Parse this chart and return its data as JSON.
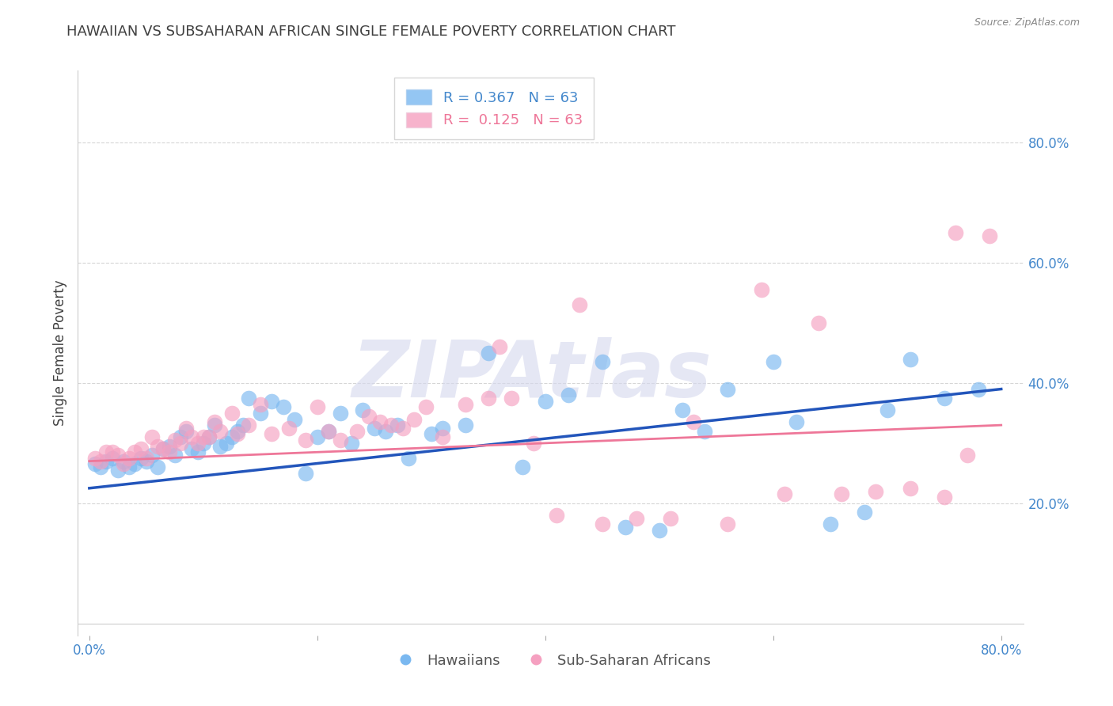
{
  "title": "HAWAIIAN VS SUBSAHARAN AFRICAN SINGLE FEMALE POVERTY CORRELATION CHART",
  "source": "Source: ZipAtlas.com",
  "ylabel": "Single Female Poverty",
  "xlabel": "",
  "xlim": [
    -0.01,
    0.82
  ],
  "ylim": [
    -0.02,
    0.92
  ],
  "xticks": [
    0.0,
    0.2,
    0.4,
    0.6,
    0.8
  ],
  "yticks": [
    0.2,
    0.4,
    0.6,
    0.8
  ],
  "xtick_labels": [
    "0.0%",
    "",
    "",
    "",
    "80.0%"
  ],
  "ytick_labels": [
    "20.0%",
    "40.0%",
    "60.0%",
    "80.0%"
  ],
  "hawaiian_color": "#7ab8f0",
  "african_color": "#f5a0c0",
  "trend_blue": "#2255bb",
  "trend_pink": "#ee7799",
  "watermark": "ZIPAtlas",
  "watermark_color": "#d5d8ee",
  "legend_r_blue": "R = 0.367",
  "legend_n_blue": "N = 63",
  "legend_r_pink": "R =  0.125",
  "legend_n_pink": "N = 63",
  "label_blue": "Hawaiians",
  "label_pink": "Sub-Saharan Africans",
  "background": "#ffffff",
  "grid_color": "#cccccc",
  "title_color": "#404040",
  "axis_color": "#4488cc",
  "axis_tick_color": "#aaaaaa",
  "hawaiian_x": [
    0.005,
    0.01,
    0.015,
    0.02,
    0.025,
    0.03,
    0.035,
    0.04,
    0.045,
    0.05,
    0.055,
    0.06,
    0.065,
    0.07,
    0.075,
    0.08,
    0.085,
    0.09,
    0.095,
    0.1,
    0.105,
    0.11,
    0.115,
    0.12,
    0.125,
    0.13,
    0.135,
    0.14,
    0.15,
    0.16,
    0.17,
    0.18,
    0.19,
    0.2,
    0.21,
    0.22,
    0.23,
    0.24,
    0.25,
    0.26,
    0.27,
    0.28,
    0.3,
    0.31,
    0.33,
    0.35,
    0.38,
    0.4,
    0.42,
    0.45,
    0.47,
    0.5,
    0.52,
    0.54,
    0.56,
    0.6,
    0.62,
    0.65,
    0.68,
    0.7,
    0.72,
    0.75,
    0.78
  ],
  "hawaiian_y": [
    0.265,
    0.26,
    0.27,
    0.275,
    0.255,
    0.27,
    0.26,
    0.265,
    0.275,
    0.27,
    0.28,
    0.26,
    0.29,
    0.295,
    0.28,
    0.31,
    0.32,
    0.29,
    0.285,
    0.3,
    0.31,
    0.33,
    0.295,
    0.3,
    0.31,
    0.32,
    0.33,
    0.375,
    0.35,
    0.37,
    0.36,
    0.34,
    0.25,
    0.31,
    0.32,
    0.35,
    0.3,
    0.355,
    0.325,
    0.32,
    0.33,
    0.275,
    0.315,
    0.325,
    0.33,
    0.45,
    0.26,
    0.37,
    0.38,
    0.435,
    0.16,
    0.155,
    0.355,
    0.32,
    0.39,
    0.435,
    0.335,
    0.165,
    0.185,
    0.355,
    0.44,
    0.375,
    0.39
  ],
  "african_x": [
    0.005,
    0.01,
    0.015,
    0.02,
    0.025,
    0.03,
    0.035,
    0.04,
    0.045,
    0.05,
    0.055,
    0.06,
    0.065,
    0.07,
    0.075,
    0.08,
    0.085,
    0.09,
    0.095,
    0.1,
    0.105,
    0.11,
    0.115,
    0.125,
    0.13,
    0.14,
    0.15,
    0.16,
    0.175,
    0.19,
    0.2,
    0.21,
    0.22,
    0.235,
    0.245,
    0.255,
    0.265,
    0.275,
    0.285,
    0.295,
    0.31,
    0.33,
    0.35,
    0.36,
    0.37,
    0.39,
    0.41,
    0.43,
    0.45,
    0.48,
    0.51,
    0.53,
    0.56,
    0.59,
    0.61,
    0.64,
    0.66,
    0.69,
    0.72,
    0.75,
    0.76,
    0.77,
    0.79
  ],
  "african_y": [
    0.275,
    0.27,
    0.285,
    0.285,
    0.28,
    0.265,
    0.275,
    0.285,
    0.29,
    0.275,
    0.31,
    0.295,
    0.29,
    0.285,
    0.305,
    0.3,
    0.325,
    0.31,
    0.3,
    0.31,
    0.31,
    0.335,
    0.32,
    0.35,
    0.315,
    0.33,
    0.365,
    0.315,
    0.325,
    0.305,
    0.36,
    0.32,
    0.305,
    0.32,
    0.345,
    0.335,
    0.33,
    0.325,
    0.34,
    0.36,
    0.31,
    0.365,
    0.375,
    0.46,
    0.375,
    0.3,
    0.18,
    0.53,
    0.165,
    0.175,
    0.175,
    0.335,
    0.165,
    0.555,
    0.215,
    0.5,
    0.215,
    0.22,
    0.225,
    0.21,
    0.65,
    0.28,
    0.645
  ],
  "blue_trend_x": [
    0.0,
    0.8
  ],
  "blue_trend_y": [
    0.225,
    0.39
  ],
  "pink_trend_x": [
    0.0,
    0.8
  ],
  "pink_trend_y": [
    0.27,
    0.33
  ]
}
